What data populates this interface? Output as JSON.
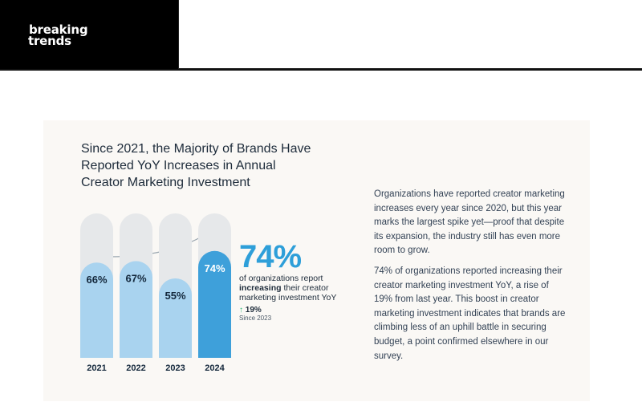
{
  "header": {
    "logo_line1": "breaking",
    "logo_line2": "trends"
  },
  "card": {
    "title": "Since 2021, the Majority of Brands Have Reported YoY Increases in Annual Creator Marketing Investment",
    "highlight": {
      "value": "74%",
      "desc_before": "of organizations report ",
      "desc_bold": "increasing",
      "desc_after": " their creator marketing investment YoY",
      "rise_arrow": "↑",
      "rise_value": "19%",
      "rise_note": "Since 2023"
    },
    "paragraphs": [
      "Organizations have reported creator marketing increases every year since 2020, but this year marks the largest spike yet—proof that despite its expansion, the industry still has even more room to grow.",
      "74% of organizations reported increasing their creator marketing investment YoY, a rise of 19% from last year. This boost in creator marketing investment indicates that brands are climbing less of an uphill battle in securing budget, a point confirmed elsewhere in our survey."
    ]
  },
  "colors": {
    "bar_light": "#a9d3ef",
    "bar_highlight": "#3ea0da",
    "bar_track": "#e6e8ea",
    "accent": "#2e9fd9",
    "rise_green": "#2bb673"
  },
  "chart_data": {
    "type": "bar",
    "categories": [
      "2021",
      "2022",
      "2023",
      "2024"
    ],
    "values": [
      66,
      67,
      55,
      74
    ],
    "value_labels": [
      "66%",
      "67%",
      "55%",
      "74%"
    ],
    "highlight_index": 3,
    "ylim": [
      0,
      100
    ],
    "title": "Since 2021, the Majority of Brands Have Reported YoY Increases in Annual Creator Marketing Investment",
    "xlabel": "",
    "ylabel": "",
    "grid": false
  }
}
